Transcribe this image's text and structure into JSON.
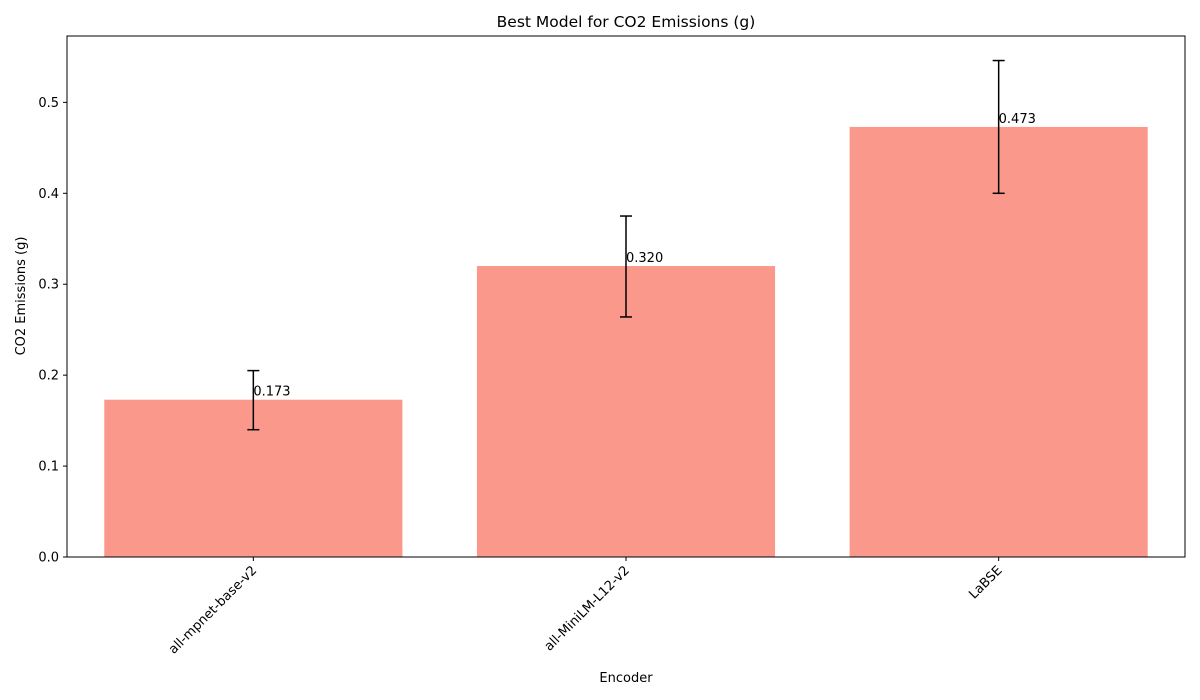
{
  "chart_data": {
    "type": "bar",
    "title": "Best Model for CO2 Emissions (g)",
    "xlabel": "Encoder",
    "ylabel": "CO2 Emissions (g)",
    "categories": [
      "all-mpnet-base-v2",
      "all-MiniLM-L12-v2",
      "LaBSE"
    ],
    "values": [
      0.173,
      0.32,
      0.473
    ],
    "error_low": [
      0.14,
      0.264,
      0.4
    ],
    "error_high": [
      0.205,
      0.375,
      0.546
    ],
    "value_labels": [
      "0.173",
      "0.320",
      "0.473"
    ],
    "ylim": [
      0,
      0.573
    ],
    "yticks": [
      0.0,
      0.1,
      0.2,
      0.3,
      0.4,
      0.5
    ],
    "ytick_labels": [
      "0.0",
      "0.1",
      "0.2",
      "0.3",
      "0.4",
      "0.5"
    ],
    "grid": false,
    "bar_color": "#fa998b",
    "error_color": "#000000"
  }
}
